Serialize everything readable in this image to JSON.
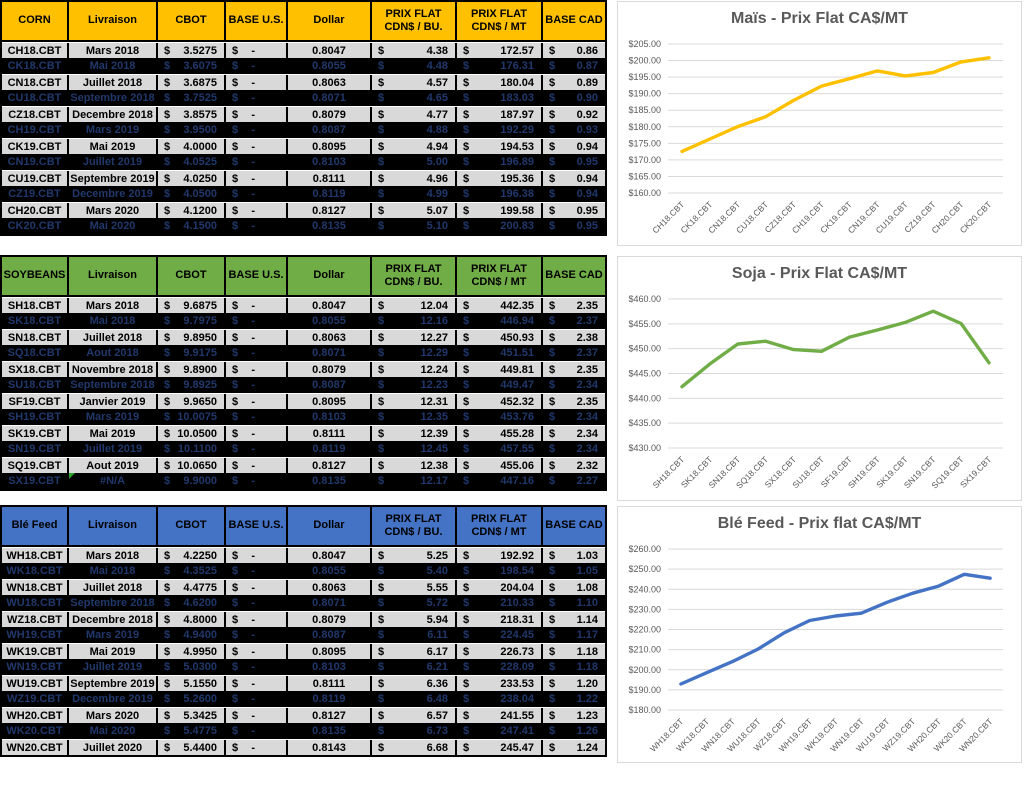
{
  "colors": {
    "corn_accent": "#FFC000",
    "soy_accent": "#70AD47",
    "wheat_accent": "#4472C4",
    "row_light": "#D9D9D9",
    "row_dark": "#000000",
    "dark_row_text": "#20386b",
    "chart_text": "#595959",
    "gridline": "#D9D9D9"
  },
  "tables": [
    {
      "id": "corn",
      "accent": "#FFC000",
      "header": [
        "CORN",
        "Livraison",
        "CBOT",
        "BASE U.S.",
        "Dollar",
        "PRIX FLAT\nCDN$ / BU.",
        "PRIX FLAT\nCDN$ / MT",
        "BASE CAD"
      ],
      "rows": [
        {
          "ticker": "CH18.CBT",
          "livraison": "Mars 2018",
          "cbot": "3.5275",
          "base_us": "-",
          "dollar": "0.8047",
          "flat_bu": "4.38",
          "flat_mt": "172.57",
          "base_cad": "0.86",
          "dark": false,
          "note": false
        },
        {
          "ticker": "CK18.CBT",
          "livraison": "Mai 2018",
          "cbot": "3.6075",
          "base_us": "-",
          "dollar": "0.8055",
          "flat_bu": "4.48",
          "flat_mt": "176.31",
          "base_cad": "0.87",
          "dark": true,
          "note": false
        },
        {
          "ticker": "CN18.CBT",
          "livraison": "Juillet 2018",
          "cbot": "3.6875",
          "base_us": "-",
          "dollar": "0.8063",
          "flat_bu": "4.57",
          "flat_mt": "180.04",
          "base_cad": "0.89",
          "dark": false,
          "note": false
        },
        {
          "ticker": "CU18.CBT",
          "livraison": "Septembre 2018",
          "cbot": "3.7525",
          "base_us": "-",
          "dollar": "0.8071",
          "flat_bu": "4.65",
          "flat_mt": "183.03",
          "base_cad": "0.90",
          "dark": true,
          "note": false
        },
        {
          "ticker": "CZ18.CBT",
          "livraison": "Decembre 2018",
          "cbot": "3.8575",
          "base_us": "-",
          "dollar": "0.8079",
          "flat_bu": "4.77",
          "flat_mt": "187.97",
          "base_cad": "0.92",
          "dark": false,
          "note": false
        },
        {
          "ticker": "CH19.CBT",
          "livraison": "Mars 2019",
          "cbot": "3.9500",
          "base_us": "-",
          "dollar": "0.8087",
          "flat_bu": "4.88",
          "flat_mt": "192.29",
          "base_cad": "0.93",
          "dark": true,
          "note": false
        },
        {
          "ticker": "CK19.CBT",
          "livraison": "Mai 2019",
          "cbot": "4.0000",
          "base_us": "-",
          "dollar": "0.8095",
          "flat_bu": "4.94",
          "flat_mt": "194.53",
          "base_cad": "0.94",
          "dark": false,
          "note": false
        },
        {
          "ticker": "CN19.CBT",
          "livraison": "Juillet 2019",
          "cbot": "4.0525",
          "base_us": "-",
          "dollar": "0.8103",
          "flat_bu": "5.00",
          "flat_mt": "196.89",
          "base_cad": "0.95",
          "dark": true,
          "note": false
        },
        {
          "ticker": "CU19.CBT",
          "livraison": "Septembre 2019",
          "cbot": "4.0250",
          "base_us": "-",
          "dollar": "0.8111",
          "flat_bu": "4.96",
          "flat_mt": "195.36",
          "base_cad": "0.94",
          "dark": false,
          "note": false
        },
        {
          "ticker": "CZ19.CBT",
          "livraison": "Decembre 2019",
          "cbot": "4.0500",
          "base_us": "-",
          "dollar": "0.8119",
          "flat_bu": "4.99",
          "flat_mt": "196.38",
          "base_cad": "0.94",
          "dark": true,
          "note": false
        },
        {
          "ticker": "CH20.CBT",
          "livraison": "Mars 2020",
          "cbot": "4.1200",
          "base_us": "-",
          "dollar": "0.8127",
          "flat_bu": "5.07",
          "flat_mt": "199.58",
          "base_cad": "0.95",
          "dark": false,
          "note": false
        },
        {
          "ticker": "CK20.CBT",
          "livraison": "Mai 2020",
          "cbot": "4.1500",
          "base_us": "-",
          "dollar": "0.8135",
          "flat_bu": "5.10",
          "flat_mt": "200.83",
          "base_cad": "0.95",
          "dark": true,
          "note": false
        }
      ]
    },
    {
      "id": "soy",
      "accent": "#70AD47",
      "header": [
        "SOYBEANS",
        "Livraison",
        "CBOT",
        "BASE U.S.",
        "Dollar",
        "PRIX FLAT\nCDN$ / BU.",
        "PRIX FLAT\nCDN$ / MT",
        "BASE CAD"
      ],
      "rows": [
        {
          "ticker": "SH18.CBT",
          "livraison": "Mars 2018",
          "cbot": "9.6875",
          "base_us": "-",
          "dollar": "0.8047",
          "flat_bu": "12.04",
          "flat_mt": "442.35",
          "base_cad": "2.35",
          "dark": false,
          "note": false
        },
        {
          "ticker": "SK18.CBT",
          "livraison": "Mai 2018",
          "cbot": "9.7975",
          "base_us": "-",
          "dollar": "0.8055",
          "flat_bu": "12.16",
          "flat_mt": "446.94",
          "base_cad": "2.37",
          "dark": true,
          "note": false
        },
        {
          "ticker": "SN18.CBT",
          "livraison": "Juillet 2018",
          "cbot": "9.8950",
          "base_us": "-",
          "dollar": "0.8063",
          "flat_bu": "12.27",
          "flat_mt": "450.93",
          "base_cad": "2.38",
          "dark": false,
          "note": false
        },
        {
          "ticker": "SQ18.CBT",
          "livraison": "Aout 2018",
          "cbot": "9.9175",
          "base_us": "-",
          "dollar": "0.8071",
          "flat_bu": "12.29",
          "flat_mt": "451.51",
          "base_cad": "2.37",
          "dark": true,
          "note": false
        },
        {
          "ticker": "SX18.CBT",
          "livraison": "Novembre 2018",
          "cbot": "9.8900",
          "base_us": "-",
          "dollar": "0.8079",
          "flat_bu": "12.24",
          "flat_mt": "449.81",
          "base_cad": "2.35",
          "dark": false,
          "note": false
        },
        {
          "ticker": "SU18.CBT",
          "livraison": "Septembre 2018",
          "cbot": "9.8925",
          "base_us": "-",
          "dollar": "0.8087",
          "flat_bu": "12.23",
          "flat_mt": "449.47",
          "base_cad": "2.34",
          "dark": true,
          "note": false
        },
        {
          "ticker": "SF19.CBT",
          "livraison": "Janvier 2019",
          "cbot": "9.9650",
          "base_us": "-",
          "dollar": "0.8095",
          "flat_bu": "12.31",
          "flat_mt": "452.32",
          "base_cad": "2.35",
          "dark": false,
          "note": false
        },
        {
          "ticker": "SH19.CBT",
          "livraison": "Mars 2019",
          "cbot": "10.0075",
          "base_us": "-",
          "dollar": "0.8103",
          "flat_bu": "12.35",
          "flat_mt": "453.76",
          "base_cad": "2.34",
          "dark": true,
          "note": false
        },
        {
          "ticker": "SK19.CBT",
          "livraison": "Mai 2019",
          "cbot": "10.0500",
          "base_us": "-",
          "dollar": "0.8111",
          "flat_bu": "12.39",
          "flat_mt": "455.28",
          "base_cad": "2.34",
          "dark": false,
          "note": false
        },
        {
          "ticker": "SN19.CBT",
          "livraison": "Juillet 2019",
          "cbot": "10.1100",
          "base_us": "-",
          "dollar": "0.8119",
          "flat_bu": "12.45",
          "flat_mt": "457.55",
          "base_cad": "2.34",
          "dark": true,
          "note": false
        },
        {
          "ticker": "SQ19.CBT",
          "livraison": "Aout 2019",
          "cbot": "10.0650",
          "base_us": "-",
          "dollar": "0.8127",
          "flat_bu": "12.38",
          "flat_mt": "455.06",
          "base_cad": "2.32",
          "dark": false,
          "note": false
        },
        {
          "ticker": "SX19.CBT",
          "livraison": "#N/A",
          "cbot": "9.9000",
          "base_us": "-",
          "dollar": "0.8135",
          "flat_bu": "12.17",
          "flat_mt": "447.16",
          "base_cad": "2.27",
          "dark": true,
          "note": true
        }
      ]
    },
    {
      "id": "wheat",
      "accent": "#4472C4",
      "header": [
        "Blé Feed",
        "Livraison",
        "CBOT",
        "BASE U.S.",
        "Dollar",
        "PRIX FLAT\nCDN$ / BU.",
        "PRIX FLAT\nCDN$ / MT",
        "BASE CAD"
      ],
      "rows": [
        {
          "ticker": "WH18.CBT",
          "livraison": "Mars 2018",
          "cbot": "4.2250",
          "base_us": "-",
          "dollar": "0.8047",
          "flat_bu": "5.25",
          "flat_mt": "192.92",
          "base_cad": "1.03",
          "dark": false,
          "note": false
        },
        {
          "ticker": "WK18.CBT",
          "livraison": "Mai 2018",
          "cbot": "4.3525",
          "base_us": "-",
          "dollar": "0.8055",
          "flat_bu": "5.40",
          "flat_mt": "198.54",
          "base_cad": "1.05",
          "dark": true,
          "note": false
        },
        {
          "ticker": "WN18.CBT",
          "livraison": "Juillet 2018",
          "cbot": "4.4775",
          "base_us": "-",
          "dollar": "0.8063",
          "flat_bu": "5.55",
          "flat_mt": "204.04",
          "base_cad": "1.08",
          "dark": false,
          "note": false
        },
        {
          "ticker": "WU18.CBT",
          "livraison": "Septembre 2018",
          "cbot": "4.6200",
          "base_us": "-",
          "dollar": "0.8071",
          "flat_bu": "5.72",
          "flat_mt": "210.33",
          "base_cad": "1.10",
          "dark": true,
          "note": false
        },
        {
          "ticker": "WZ18.CBT",
          "livraison": "Decembre 2018",
          "cbot": "4.8000",
          "base_us": "-",
          "dollar": "0.8079",
          "flat_bu": "5.94",
          "flat_mt": "218.31",
          "base_cad": "1.14",
          "dark": false,
          "note": false
        },
        {
          "ticker": "WH19.CBT",
          "livraison": "Mars 2019",
          "cbot": "4.9400",
          "base_us": "-",
          "dollar": "0.8087",
          "flat_bu": "6.11",
          "flat_mt": "224.45",
          "base_cad": "1.17",
          "dark": true,
          "note": false
        },
        {
          "ticker": "WK19.CBT",
          "livraison": "Mai 2019",
          "cbot": "4.9950",
          "base_us": "-",
          "dollar": "0.8095",
          "flat_bu": "6.17",
          "flat_mt": "226.73",
          "base_cad": "1.18",
          "dark": false,
          "note": false
        },
        {
          "ticker": "WN19.CBT",
          "livraison": "Juillet 2019",
          "cbot": "5.0300",
          "base_us": "-",
          "dollar": "0.8103",
          "flat_bu": "6.21",
          "flat_mt": "228.09",
          "base_cad": "1.18",
          "dark": true,
          "note": false
        },
        {
          "ticker": "WU19.CBT",
          "livraison": "Septembre 2019",
          "cbot": "5.1550",
          "base_us": "-",
          "dollar": "0.8111",
          "flat_bu": "6.36",
          "flat_mt": "233.53",
          "base_cad": "1.20",
          "dark": false,
          "note": false
        },
        {
          "ticker": "WZ19.CBT",
          "livraison": "Decembre 2019",
          "cbot": "5.2600",
          "base_us": "-",
          "dollar": "0.8119",
          "flat_bu": "6.48",
          "flat_mt": "238.04",
          "base_cad": "1.22",
          "dark": true,
          "note": false
        },
        {
          "ticker": "WH20.CBT",
          "livraison": "Mars 2020",
          "cbot": "5.3425",
          "base_us": "-",
          "dollar": "0.8127",
          "flat_bu": "6.57",
          "flat_mt": "241.55",
          "base_cad": "1.23",
          "dark": false,
          "note": false
        },
        {
          "ticker": "WK20.CBT",
          "livraison": "Mai 2020",
          "cbot": "5.4775",
          "base_us": "-",
          "dollar": "0.8135",
          "flat_bu": "6.73",
          "flat_mt": "247.41",
          "base_cad": "1.26",
          "dark": true,
          "note": false
        },
        {
          "ticker": "WN20.CBT",
          "livraison": "Juillet 2020",
          "cbot": "5.4400",
          "base_us": "-",
          "dollar": "0.8143",
          "flat_bu": "6.68",
          "flat_mt": "245.47",
          "base_cad": "1.24",
          "dark": false,
          "note": false
        }
      ]
    }
  ],
  "chart_data": [
    {
      "type": "line",
      "id": "mais",
      "title": "Maïs - Prix Flat CA$/MT",
      "color": "#FFC000",
      "x": [
        "CH18.CBT",
        "CK18.CBT",
        "CN18.CBT",
        "CU18.CBT",
        "CZ18.CBT",
        "CH19.CBT",
        "CK19.CBT",
        "CN19.CBT",
        "CU19.CBT",
        "CZ19.CBT",
        "CH20.CBT",
        "CK20.CBT"
      ],
      "values": [
        172.57,
        176.31,
        180.04,
        183.03,
        187.97,
        192.29,
        194.53,
        196.89,
        195.36,
        196.38,
        199.58,
        200.83
      ],
      "ylim": [
        160,
        205
      ],
      "y_step": 5,
      "y_tick_labels": [
        "$160.00",
        "$165.00",
        "$170.00",
        "$175.00",
        "$180.00",
        "$185.00",
        "$190.00",
        "$195.00",
        "$200.00",
        "$205.00"
      ],
      "grid": true,
      "legend": "none"
    },
    {
      "type": "line",
      "id": "soja",
      "title": "Soja - Prix Flat CA$/MT",
      "color": "#70AD47",
      "x": [
        "SH18.CBT",
        "SK18.CBT",
        "SN18.CBT",
        "SQ18.CBT",
        "SX18.CBT",
        "SU18.CBT",
        "SF19.CBT",
        "SH19.CBT",
        "SK19.CBT",
        "SN19.CBT",
        "SQ19.CBT",
        "SX19.CBT"
      ],
      "values": [
        442.35,
        446.94,
        450.93,
        451.51,
        449.81,
        449.47,
        452.32,
        453.76,
        455.28,
        457.55,
        455.06,
        447.16
      ],
      "ylim": [
        430,
        460
      ],
      "y_step": 5,
      "y_tick_labels": [
        "$430.00",
        "$435.00",
        "$440.00",
        "$445.00",
        "$450.00",
        "$455.00",
        "$460.00"
      ],
      "grid": true,
      "legend": "none"
    },
    {
      "type": "line",
      "id": "ble",
      "title": "Blé Feed - Prix flat CA$/MT",
      "color": "#4472C4",
      "x": [
        "WH18.CBT",
        "WK18.CBT",
        "WN18.CBT",
        "WU18.CBT",
        "WZ18.CBT",
        "WH19.CBT",
        "WK19.CBT",
        "WN19.CBT",
        "WU19.CBT",
        "WZ19.CBT",
        "WH20.CBT",
        "WK20.CBT",
        "WN20.CBT"
      ],
      "values": [
        192.92,
        198.54,
        204.04,
        210.33,
        218.31,
        224.45,
        226.73,
        228.09,
        233.53,
        238.04,
        241.55,
        247.41,
        245.47
      ],
      "ylim": [
        180,
        260
      ],
      "y_step": 10,
      "y_tick_labels": [
        "$180.00",
        "$190.00",
        "$200.00",
        "$210.00",
        "$220.00",
        "$230.00",
        "$240.00",
        "$250.00",
        "$260.00"
      ],
      "grid": true,
      "legend": "none"
    }
  ]
}
